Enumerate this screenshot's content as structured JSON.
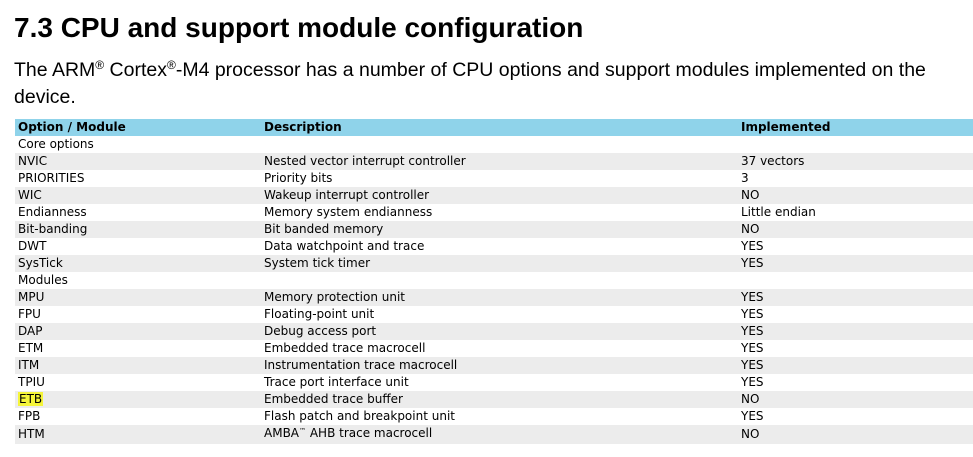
{
  "heading": "7.3 CPU and support module configuration",
  "intro": {
    "part1": "The ARM",
    "reg1": "®",
    "part2": " Cortex",
    "reg2": "®",
    "part3": "-M4 processor has a number of CPU options and support modules implemented on the device."
  },
  "table": {
    "headers": [
      "Option / Module",
      "Description",
      "Implemented"
    ],
    "rows": [
      {
        "option": "Core options",
        "description": "",
        "implemented": ""
      },
      {
        "option": "NVIC",
        "description": "Nested vector interrupt controller",
        "implemented": "37 vectors"
      },
      {
        "option": "PRIORITIES",
        "description": "Priority bits",
        "implemented": "3"
      },
      {
        "option": "WIC",
        "description": "Wakeup interrupt controller",
        "implemented": "NO"
      },
      {
        "option": "Endianness",
        "description": "Memory system endianness",
        "implemented": "Little endian"
      },
      {
        "option": "Bit-banding",
        "description": "Bit banded memory",
        "implemented": "NO"
      },
      {
        "option": "DWT",
        "description": "Data watchpoint and trace",
        "implemented": "YES"
      },
      {
        "option": "SysTick",
        "description": "System tick timer",
        "implemented": "YES"
      },
      {
        "option": "Modules",
        "description": "",
        "implemented": ""
      },
      {
        "option": "MPU",
        "description": "Memory protection unit",
        "implemented": "YES"
      },
      {
        "option": "FPU",
        "description": "Floating-point unit",
        "implemented": "YES"
      },
      {
        "option": "DAP",
        "description": "Debug access port",
        "implemented": "YES"
      },
      {
        "option": "ETM",
        "description": "Embedded trace macrocell",
        "implemented": "YES"
      },
      {
        "option": "ITM",
        "description": "Instrumentation trace macrocell",
        "implemented": "YES"
      },
      {
        "option": "TPIU",
        "description": "Trace port interface unit",
        "implemented": "YES"
      },
      {
        "option": "ETB",
        "description": "Embedded trace buffer",
        "implemented": "NO",
        "highlighted": true
      },
      {
        "option": "FPB",
        "description": "Flash patch and breakpoint unit",
        "implemented": "YES"
      },
      {
        "option": "HTM",
        "description": "AMBA",
        "description_tm": "™",
        "description_rest": " AHB trace macrocell",
        "implemented": "NO"
      }
    ]
  },
  "colors": {
    "header_row": "#8fd3ea",
    "stripe_row": "#ececec",
    "highlight": "#f5f53a"
  }
}
